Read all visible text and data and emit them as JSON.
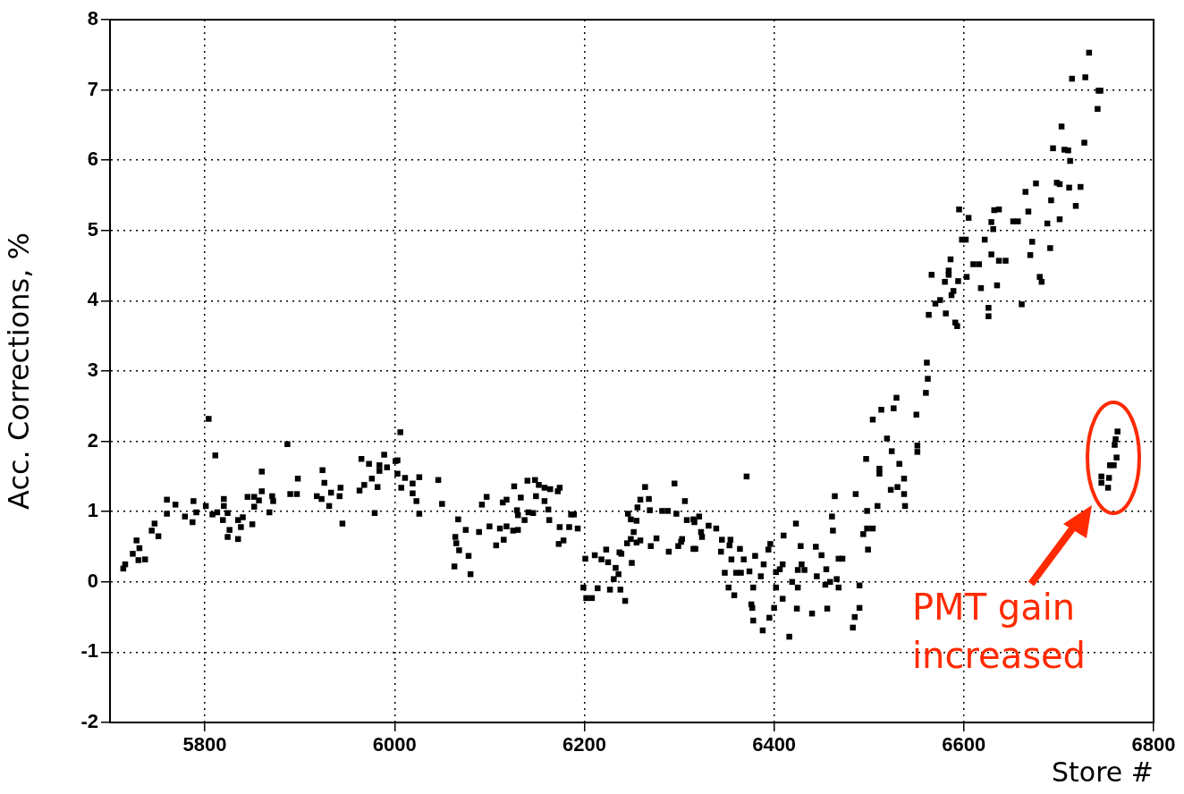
{
  "chart_data": {
    "type": "scatter",
    "xlabel": "Store #",
    "ylabel": "Acc. Corrections, %",
    "xlim": [
      5700,
      6800
    ],
    "ylim": [
      -2,
      8
    ],
    "xticks": [
      5800,
      6000,
      6200,
      6400,
      6600,
      6800
    ],
    "yticks": [
      -2,
      -1,
      0,
      1,
      2,
      3,
      4,
      5,
      6,
      7,
      8
    ],
    "grid": true,
    "marker": "square",
    "legend": false,
    "annotations": [
      "PMT gain increased"
    ],
    "series": [
      {
        "color": "#000000",
        "x": [
          5714,
          5716,
          5724,
          5728,
          5731,
          5730,
          5737,
          5747,
          5744,
          5751,
          5760,
          5760,
          5769,
          5779,
          5787,
          5788,
          5791,
          5801,
          5804,
          5811,
          5808,
          5813,
          5820,
          5820,
          5819,
          5824,
          5826,
          5824,
          5835,
          5835,
          5840,
          5838,
          5850,
          5845,
          5852,
          5860,
          5852,
          5857,
          5868,
          5860,
          5871,
          5872,
          5887,
          5890,
          5897,
          5898,
          5918,
          5924,
          5923,
          5926,
          5931,
          5933,
          5943,
          5942,
          5945,
          5963,
          5965,
          5973,
          5968,
          5976,
          5979,
          5982,
          5984,
          5984,
          5989,
          5992,
          6001,
          6003,
          6003,
          6006,
          6007,
          6011,
          6019,
          6019,
          6026,
          6023,
          6026,
          6046,
          6050,
          6067,
          6064,
          6065,
          6068,
          6063,
          6075,
          6078,
          6080,
          6089,
          6092,
          6097,
          6100,
          6107,
          6111,
          6114,
          6115,
          6118,
          6118,
          6125,
          6126,
          6130,
          6129,
          6133,
          6130,
          6137,
          6140,
          6141,
          6148,
          6146,
          6149,
          6152,
          6158,
          6158,
          6162,
          6164,
          6163,
          6172,
          6174,
          6174,
          6173,
          6178,
          6184,
          6186,
          6189,
          6193,
          6201,
          6199,
          6202,
          6208,
          6211,
          6214,
          6218,
          6223,
          6225,
          6227,
          6231,
          6233,
          6237,
          6236,
          6239,
          6238,
          6243,
          6250,
          6245,
          6249,
          6252,
          6255,
          6259,
          6246,
          6249,
          6255,
          6256,
          6259,
          6264,
          6268,
          6269,
          6270,
          6276,
          6282,
          6288,
          6289,
          6295,
          6297,
          6299,
          6303,
          6306,
          6308,
          6315,
          6315,
          6302,
          6316,
          6321,
          6317,
          6323,
          6324,
          6331,
          6339,
          6345,
          6344,
          6354,
          6353,
          6348,
          6355,
          6352,
          6358,
          6360,
          6364,
          6365,
          6368,
          6371,
          6374,
          6376,
          6377,
          6380,
          6378,
          6378,
          6386,
          6388,
          6389,
          6395,
          6394,
          6396,
          6400,
          6402,
          6402,
          6406,
          6409,
          6409,
          6410,
          6416,
          6419,
          6423,
          6424,
          6425,
          6425,
          6428,
          6429,
          6432,
          6440,
          6444,
          6445,
          6450,
          6454,
          6455,
          6456,
          6461,
          6462,
          6459,
          6466,
          6468,
          6472,
          6468,
          6464,
          6483,
          6485,
          6490,
          6490,
          6486,
          6494,
          6499,
          6498,
          6504,
          6498,
          6509,
          6497,
          6511,
          6511,
          6519,
          6524,
          6532,
          6523,
          6530,
          6537,
          6537,
          6538,
          6504,
          6513,
          6526,
          6529,
          6550,
          6551,
          6551,
          6560,
          6562,
          6561,
          6563,
          6566,
          6570,
          6575,
          6581,
          6584,
          6584,
          6580,
          6586,
          6587,
          6589,
          6591,
          6593,
          6594,
          6595,
          6598,
          6602,
          6603,
          6605,
          6610,
          6616,
          6618,
          6622,
          6626,
          6626,
          6629,
          6629,
          6631,
          6632,
          6637,
          6637,
          6635,
          6644,
          6652,
          6657,
          6661,
          6665,
          6668,
          6670,
          6672,
          6676,
          6680,
          6682,
          6688,
          6691,
          6692,
          6694,
          6698,
          6701,
          6701,
          6703,
          6706,
          6710,
          6711,
          6712,
          6714,
          6718,
          6723,
          6727,
          6728,
          6732,
          6741,
          6742,
          6744,
          6745,
          6745,
          6753,
          6752,
          6754,
          6758,
          6761,
          6759,
          6760,
          6762
        ],
        "values": [
          0.19,
          0.25,
          0.4,
          0.59,
          0.48,
          0.31,
          0.32,
          0.83,
          0.73,
          0.65,
          1.17,
          0.97,
          1.1,
          0.93,
          0.85,
          1.15,
          0.99,
          1.08,
          2.32,
          1.8,
          0.96,
          0.99,
          1.18,
          1.08,
          0.88,
          0.98,
          0.74,
          0.64,
          0.61,
          0.88,
          0.92,
          0.78,
          0.82,
          1.21,
          1.21,
          1.29,
          1.07,
          1.16,
          0.99,
          1.57,
          1.22,
          1.15,
          1.96,
          1.25,
          1.25,
          1.47,
          1.22,
          1.59,
          1.18,
          1.41,
          1.08,
          1.27,
          1.34,
          1.22,
          0.83,
          1.3,
          1.75,
          1.68,
          1.38,
          1.47,
          0.98,
          1.35,
          1.66,
          1.58,
          1.81,
          1.63,
          1.72,
          1.73,
          1.54,
          2.13,
          1.34,
          1.48,
          1.4,
          1.26,
          1.49,
          1.15,
          0.97,
          1.45,
          1.11,
          0.89,
          0.64,
          0.55,
          0.45,
          0.22,
          0.74,
          0.37,
          0.11,
          0.71,
          1.1,
          1.21,
          0.79,
          0.52,
          0.76,
          1.13,
          0.6,
          0.79,
          1.17,
          0.73,
          1.36,
          0.74,
          1.02,
          1.2,
          0.95,
          0.88,
          1.44,
          0.99,
          1.45,
          0.98,
          1.22,
          1.38,
          1.34,
          1.15,
          1.03,
          1.32,
          0.88,
          1.29,
          1.34,
          0.78,
          0.54,
          0.59,
          0.78,
          0.96,
          0.96,
          0.76,
          0.33,
          -0.08,
          -0.23,
          -0.23,
          0.38,
          -0.09,
          0.32,
          0.46,
          0.28,
          -0.11,
          0.04,
          0.2,
          0.42,
          0.11,
          0.4,
          -0.11,
          -0.27,
          0.27,
          0.55,
          0.61,
          0.71,
          0.56,
          0.59,
          0.97,
          0.89,
          0.87,
          1.06,
          1.17,
          1.35,
          1.18,
          1.02,
          0.51,
          0.62,
          1.01,
          1.01,
          0.43,
          1.4,
          0.97,
          0.51,
          0.61,
          1.15,
          0.88,
          0.89,
          0.47,
          0.57,
          0.85,
          0.93,
          0.47,
          0.71,
          0.64,
          0.8,
          0.76,
          0.6,
          0.43,
          0.6,
          0.52,
          0.13,
          0.32,
          -0.08,
          -0.19,
          0.13,
          0.47,
          0.13,
          0.32,
          1.5,
          0.15,
          -0.32,
          -0.37,
          0.37,
          -0.55,
          -0.08,
          0.08,
          -0.69,
          0.25,
          -0.51,
          0.46,
          0.54,
          -0.37,
          -0.08,
          0.14,
          0.18,
          0.25,
          -0.24,
          0.66,
          -0.78,
          0,
          0.83,
          -0.38,
          0.17,
          -0.08,
          0.51,
          0.25,
          0.17,
          -0.45,
          0.5,
          0.08,
          0.38,
          -0.04,
          0.18,
          -0.38,
          0.93,
          0.73,
          0,
          0.04,
          0.33,
          0.33,
          -0.08,
          1.22,
          -0.65,
          -0.5,
          -0.37,
          -0.05,
          1.25,
          0.68,
          0.46,
          0.76,
          0.76,
          1.01,
          1.08,
          1.75,
          1.54,
          1.61,
          2.04,
          1.86,
          1.68,
          1.31,
          1.35,
          1.47,
          1.25,
          1.08,
          2.31,
          2.45,
          2.47,
          2.62,
          2.38,
          1.94,
          1.85,
          2.69,
          2.89,
          3.12,
          3.8,
          4.37,
          3.96,
          4.01,
          3.82,
          4.43,
          4.37,
          4.27,
          4.59,
          4.08,
          4.14,
          3.69,
          3.64,
          4.28,
          5.3,
          4.87,
          4.87,
          4.34,
          5.18,
          4.52,
          4.52,
          4.18,
          4.87,
          3.9,
          3.78,
          4.66,
          5.12,
          5.02,
          5.29,
          5.3,
          4.57,
          4.22,
          4.57,
          5.13,
          5.13,
          3.95,
          5.55,
          5.27,
          4.65,
          4.84,
          5.67,
          4.34,
          4.27,
          5.1,
          4.75,
          5.43,
          6.17,
          5.68,
          5.16,
          5.66,
          6.48,
          6.15,
          6.14,
          5.61,
          5.99,
          7.16,
          5.35,
          5.62,
          6.25,
          7.18,
          7.53,
          6.73,
          6.99,
          6.99,
          1.5,
          1.41,
          1.48,
          1.34,
          1.66,
          1.66,
          1.77,
          1.95,
          2.03,
          2.14
        ]
      }
    ]
  }
}
